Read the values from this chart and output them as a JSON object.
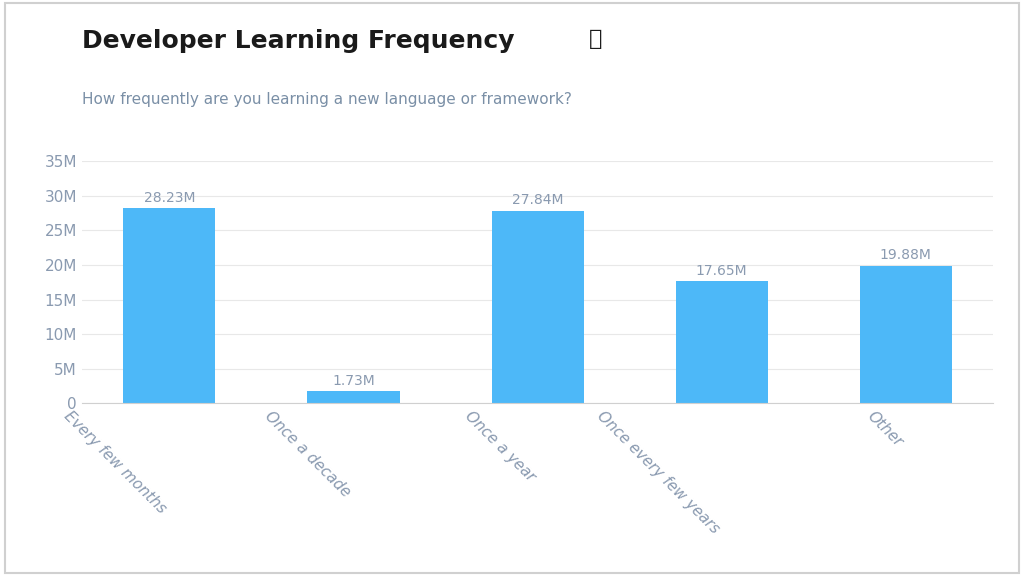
{
  "title": "Developer Learning Frequency",
  "title_info": "ⓘ",
  "subtitle": "How frequently are you learning a new language or framework?",
  "categories": [
    "Every few months",
    "Once a decade",
    "Once a year",
    "Once every few years",
    "Other"
  ],
  "values": [
    28.23,
    1.73,
    27.84,
    17.65,
    19.88
  ],
  "bar_labels": [
    "28.23M",
    "1.73M",
    "27.84M",
    "17.65M",
    "19.88M"
  ],
  "bar_color": "#4db8f8",
  "background_color": "#ffffff",
  "plot_background": "#ffffff",
  "outer_border_color": "#d0d0d0",
  "title_color": "#1a1a1a",
  "subtitle_color": "#7a8fa6",
  "tick_label_color": "#8a9ab0",
  "bar_label_color": "#8a9ab0",
  "grid_color": "#e8e8e8",
  "ylim": [
    0,
    35
  ],
  "ytick_values": [
    0,
    5,
    10,
    15,
    20,
    25,
    30,
    35
  ],
  "ytick_labels": [
    "0",
    "5M",
    "10M",
    "15M",
    "20M",
    "25M",
    "30M",
    "35M"
  ],
  "title_fontsize": 18,
  "subtitle_fontsize": 11,
  "bar_label_fontsize": 10,
  "tick_fontsize": 11,
  "xticklabel_rotation": -45
}
